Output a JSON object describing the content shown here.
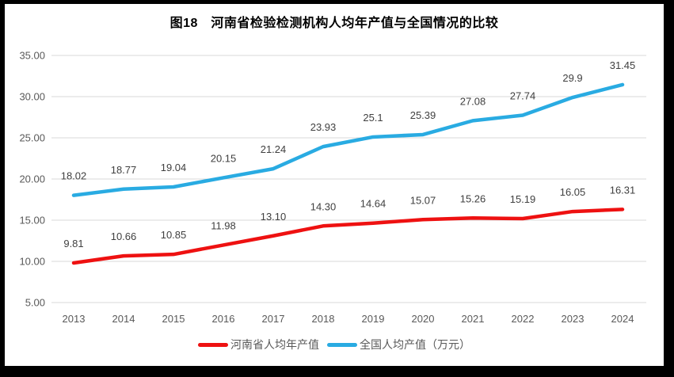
{
  "frame": {
    "border_color": "#000000",
    "background": "#ffffff"
  },
  "chart_data": {
    "type": "line",
    "title": "图18　河南省检验检测机构人均年产值与全国情况的比较",
    "categories": [
      "2013",
      "2014",
      "2015",
      "2016",
      "2017",
      "2018",
      "2019",
      "2020",
      "2021",
      "2022",
      "2023",
      "2024"
    ],
    "series": [
      {
        "name": "河南省人均年产值",
        "color": "#EE1111",
        "values": [
          9.81,
          10.66,
          10.85,
          11.98,
          13.1,
          14.3,
          14.64,
          15.07,
          15.26,
          15.19,
          16.05,
          16.31
        ],
        "labels": [
          "9.81",
          "10.66",
          "10.85",
          "11.98",
          "13.10",
          "14.30",
          "14.64",
          "15.07",
          "15.26",
          "15.19",
          "16.05",
          "16.31"
        ]
      },
      {
        "name": "全国人均产值（万元）",
        "color": "#29ABE2",
        "values": [
          18.02,
          18.77,
          19.04,
          20.15,
          21.24,
          23.93,
          25.1,
          25.39,
          27.08,
          27.74,
          29.9,
          31.45
        ],
        "labels": [
          "18.02",
          "18.77",
          "19.04",
          "20.15",
          "21.24",
          "23.93",
          "25.1",
          "25.39",
          "27.08",
          "27.74",
          "29.9",
          "31.45"
        ]
      }
    ],
    "xlabel": "",
    "ylabel": "",
    "ylim": [
      5,
      35
    ],
    "ytick_step": 5,
    "ytick_labels": [
      "35.00",
      "30.00",
      "25.00",
      "20.00",
      "15.00",
      "10.00",
      "5.00"
    ],
    "grid": true,
    "legend_position": "bottom",
    "colors": {
      "grid": "#D9D9D9",
      "axis_text": "#595959",
      "data_label": "#404040"
    }
  }
}
